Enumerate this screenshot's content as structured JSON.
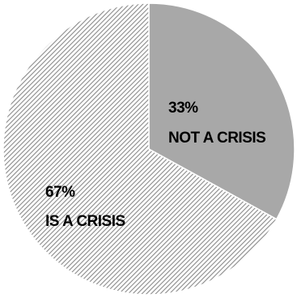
{
  "chart_data": {
    "type": "pie",
    "slices": [
      {
        "label": "NOT A CRISIS",
        "percent_label": "33%",
        "value": 33,
        "color": "#a8a8a8",
        "pattern": "solid"
      },
      {
        "label": "IS A CRISIS",
        "percent_label": "67%",
        "value": 67,
        "color": "#9a9a9a",
        "pattern": "diagonal-hatch"
      }
    ],
    "start_angle": "12 o'clock",
    "direction": "clockwise",
    "legend": "none"
  }
}
